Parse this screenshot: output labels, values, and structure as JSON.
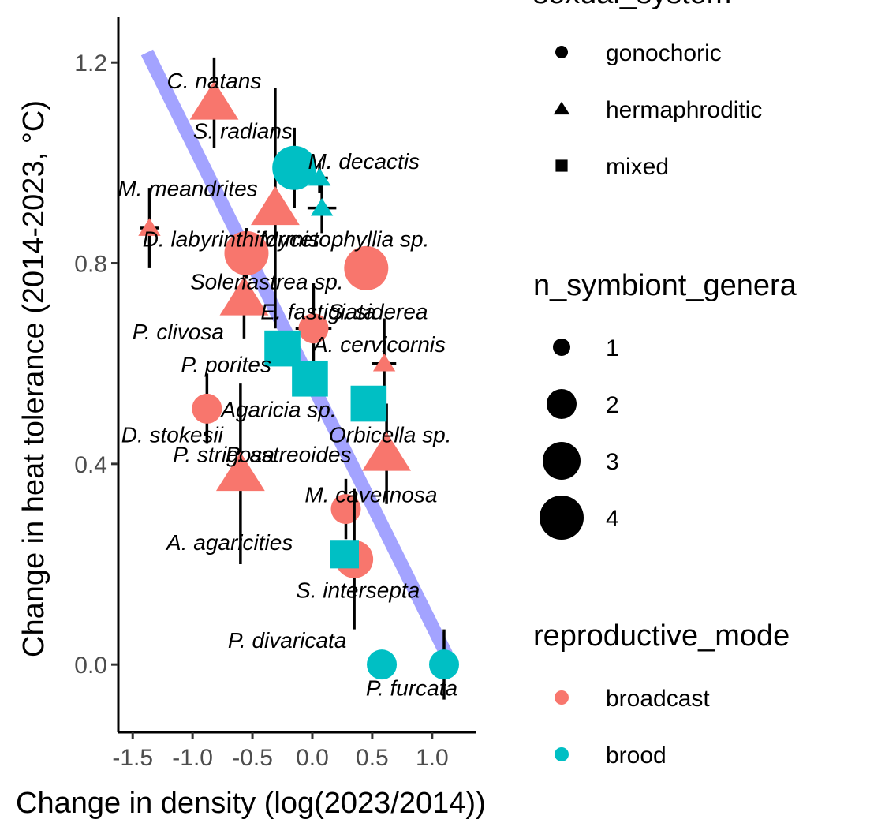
{
  "chart_data": {
    "type": "scatter",
    "xlabel": "Change in density (log(2023/2014))",
    "ylabel": "Change in heat tolerance (2014-2023, °C)",
    "xlim": [
      -1.62,
      1.37
    ],
    "ylim": [
      -0.135,
      1.29
    ],
    "x_ticks": [
      -1.5,
      -1.0,
      -0.5,
      0.0,
      0.5,
      1.0
    ],
    "x_tick_labels": [
      "-1.5",
      "-1.0",
      "-0.5",
      "0.0",
      "0.5",
      "1.0"
    ],
    "y_ticks": [
      0.0,
      0.4,
      0.8,
      1.2
    ],
    "y_tick_labels": [
      "0.0",
      "0.4",
      "0.8",
      "1.2"
    ],
    "grid": false,
    "regression_line": {
      "x1": -1.38,
      "y1": 1.22,
      "x2": 1.12,
      "y2": 0.02,
      "color": "#9999FF"
    },
    "colors": {
      "broadcast": "#F8766D",
      "brood": "#00BFC4",
      "fit": "#9999FF"
    },
    "points": [
      {
        "x": -0.82,
        "y": 1.12,
        "xerr": 0.0,
        "yerr": 0.09,
        "shape": "triangle",
        "repro": "broadcast",
        "n": 3
      },
      {
        "x": -0.31,
        "y": 0.91,
        "xerr": 0.0,
        "yerr": 0.24,
        "shape": "triangle",
        "repro": "broadcast",
        "n": 3
      },
      {
        "x": -1.36,
        "y": 0.87,
        "xerr": 0.08,
        "yerr": 0.08,
        "shape": "triangle",
        "repro": "broadcast",
        "n": 1
      },
      {
        "x": -0.57,
        "y": 0.73,
        "xerr": 0.0,
        "yerr": 0.08,
        "shape": "triangle",
        "repro": "broadcast",
        "n": 3
      },
      {
        "x": -0.6,
        "y": 0.38,
        "xerr": 0.0,
        "yerr": 0.18,
        "shape": "triangle",
        "repro": "broadcast",
        "n": 3
      },
      {
        "x": 0.6,
        "y": 0.6,
        "xerr": 0.1,
        "yerr": 0.09,
        "shape": "triangle",
        "repro": "broadcast",
        "n": 1
      },
      {
        "x": 0.62,
        "y": 0.42,
        "xerr": 0.0,
        "yerr": 0.1,
        "shape": "triangle",
        "repro": "broadcast",
        "n": 3
      },
      {
        "x": 0.08,
        "y": 0.91,
        "xerr": 0.12,
        "yerr": 0.05,
        "shape": "triangle",
        "repro": "brood",
        "n": 1
      },
      {
        "x": 0.06,
        "y": 0.97,
        "xerr": 0.07,
        "yerr": 0.03,
        "shape": "triangle",
        "repro": "brood",
        "n": 1
      },
      {
        "x": -0.55,
        "y": 0.82,
        "xerr": 0.0,
        "yerr": 0.05,
        "shape": "circle",
        "repro": "broadcast",
        "n": 4
      },
      {
        "x": 0.45,
        "y": 0.79,
        "xerr": 0.0,
        "yerr": 0.0,
        "shape": "circle",
        "repro": "broadcast",
        "n": 4
      },
      {
        "x": 0.01,
        "y": 0.67,
        "xerr": 0.15,
        "yerr": 0.09,
        "shape": "circle",
        "repro": "broadcast",
        "n": 2
      },
      {
        "x": -0.88,
        "y": 0.51,
        "xerr": 0.0,
        "yerr": 0.07,
        "shape": "circle",
        "repro": "broadcast",
        "n": 2
      },
      {
        "x": 0.28,
        "y": 0.31,
        "xerr": 0.0,
        "yerr": 0.06,
        "shape": "circle",
        "repro": "broadcast",
        "n": 2
      },
      {
        "x": 0.35,
        "y": 0.21,
        "xerr": 0.0,
        "yerr": 0.14,
        "shape": "circle",
        "repro": "broadcast",
        "n": 3
      },
      {
        "x": -0.15,
        "y": 0.99,
        "xerr": 0.0,
        "yerr": 0.08,
        "shape": "circle",
        "repro": "brood",
        "n": 4
      },
      {
        "x": 0.58,
        "y": 0.0,
        "xerr": 0.0,
        "yerr": 0.0,
        "shape": "circle",
        "repro": "brood",
        "n": 2
      },
      {
        "x": 1.1,
        "y": 0.0,
        "xerr": 0.12,
        "yerr": 0.07,
        "shape": "circle",
        "repro": "brood",
        "n": 2
      },
      {
        "x": -0.25,
        "y": 0.63,
        "xerr": 0.0,
        "yerr": 0.0,
        "shape": "square",
        "repro": "brood",
        "n": 3
      },
      {
        "x": -0.02,
        "y": 0.57,
        "xerr": 0.12,
        "yerr": 0.0,
        "shape": "square",
        "repro": "brood",
        "n": 3
      },
      {
        "x": 0.47,
        "y": 0.52,
        "xerr": 0.0,
        "yerr": 0.0,
        "shape": "square",
        "repro": "brood",
        "n": 3
      },
      {
        "x": 0.27,
        "y": 0.22,
        "xerr": 0.0,
        "yerr": 0.0,
        "shape": "square",
        "repro": "brood",
        "n": 2
      }
    ],
    "labels": [
      {
        "text": "C. natans",
        "x": -0.82,
        "y": 1.16
      },
      {
        "text": "S. radians",
        "x": -0.58,
        "y": 1.06
      },
      {
        "text": "M. decactis",
        "x": 0.43,
        "y": 1.0
      },
      {
        "text": "M. meandrites",
        "x": -1.04,
        "y": 0.945
      },
      {
        "text": "D. labyrinthiformis",
        "x": -0.68,
        "y": 0.845
      },
      {
        "text": "Mycetophyllia sp.",
        "x": 0.27,
        "y": 0.845
      },
      {
        "text": "Solenastrea sp.",
        "x": -0.38,
        "y": 0.76
      },
      {
        "text": "E. fastigiata",
        "x": 0.05,
        "y": 0.7
      },
      {
        "text": "S. siderea",
        "x": 0.55,
        "y": 0.7
      },
      {
        "text": "P. clivosa",
        "x": -1.12,
        "y": 0.66
      },
      {
        "text": "A. cervicornis",
        "x": 0.56,
        "y": 0.635
      },
      {
        "text": "P. porites",
        "x": -0.72,
        "y": 0.595
      },
      {
        "text": "Agaricia sp.",
        "x": -0.28,
        "y": 0.505
      },
      {
        "text": "Orbicella sp.",
        "x": 0.65,
        "y": 0.455
      },
      {
        "text": "D. stokesii",
        "x": -1.17,
        "y": 0.455
      },
      {
        "text": "P. strigosa",
        "x": -0.74,
        "y": 0.415
      },
      {
        "text": "P. astreoides",
        "x": -0.2,
        "y": 0.415
      },
      {
        "text": "M. cavernosa",
        "x": 0.49,
        "y": 0.335
      },
      {
        "text": "A. agaricities",
        "x": -0.69,
        "y": 0.24
      },
      {
        "text": "S. intersepta",
        "x": 0.38,
        "y": 0.145
      },
      {
        "text": "P. divaricata",
        "x": -0.21,
        "y": 0.045
      },
      {
        "text": "P. furcata",
        "x": 0.83,
        "y": -0.05
      }
    ]
  },
  "legend": {
    "sexual_system": {
      "title": "sexual_system",
      "items": [
        {
          "label": "gonochoric",
          "shape": "circle"
        },
        {
          "label": "hermaphroditic",
          "shape": "triangle"
        },
        {
          "label": "mixed",
          "shape": "square"
        }
      ]
    },
    "symbionts": {
      "title": "n_symbiont_genera",
      "items": [
        {
          "label": "1",
          "n": 1
        },
        {
          "label": "2",
          "n": 2
        },
        {
          "label": "3",
          "n": 3
        },
        {
          "label": "4",
          "n": 4
        }
      ]
    },
    "repro": {
      "title": "reproductive_mode",
      "items": [
        {
          "label": "broadcast",
          "key": "broadcast"
        },
        {
          "label": "brood",
          "key": "brood"
        }
      ]
    }
  }
}
